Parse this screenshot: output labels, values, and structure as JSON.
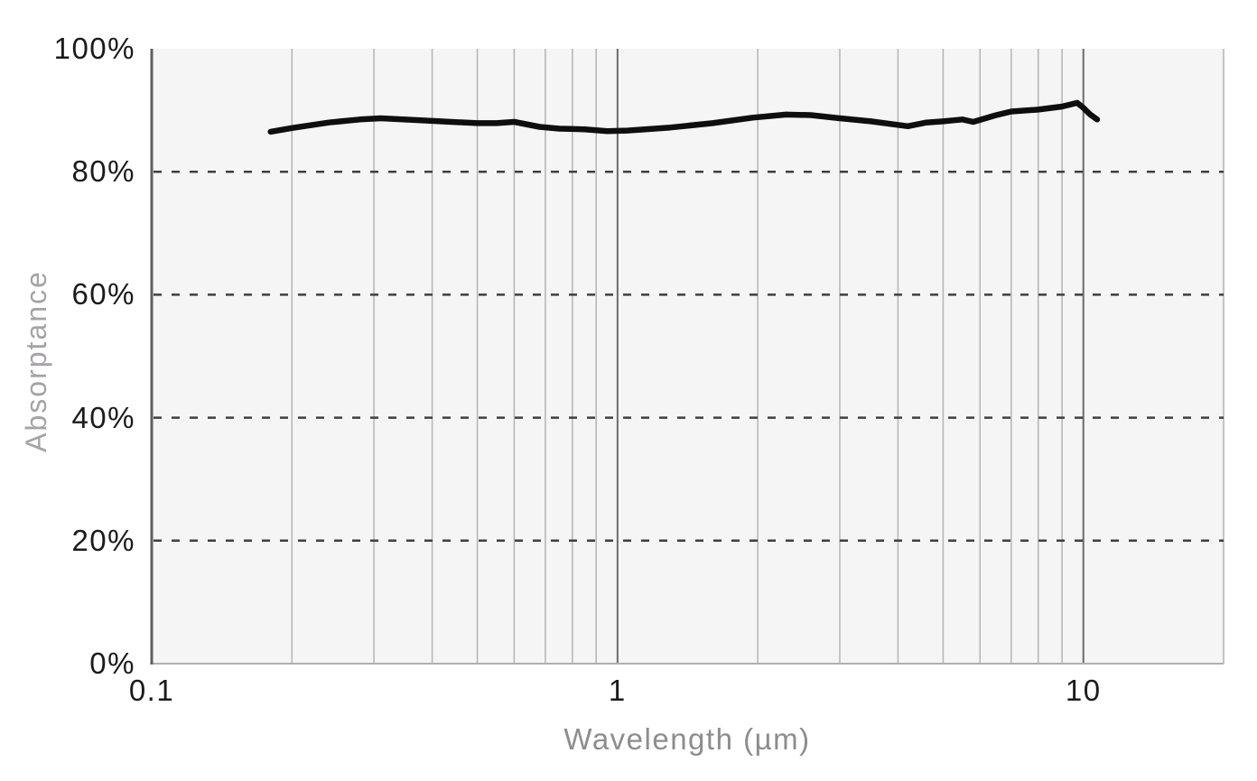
{
  "chart_data": {
    "type": "line",
    "title": "",
    "xlabel": "Wavelength (µm)",
    "ylabel": "Absorptance",
    "x_scale": "log",
    "xlim": [
      0.1,
      20
    ],
    "ylim": [
      0,
      100
    ],
    "grid": true,
    "legend": "none",
    "x_ticks": [
      {
        "value": 0.1,
        "label": "0.1"
      },
      {
        "value": 1,
        "label": "1"
      },
      {
        "value": 10,
        "label": "10"
      }
    ],
    "y_ticks": [
      {
        "value": 100,
        "label": "100%"
      },
      {
        "value": 80,
        "label": "80%"
      },
      {
        "value": 60,
        "label": "60%"
      },
      {
        "value": 40,
        "label": "40%"
      },
      {
        "value": 20,
        "label": "20%"
      },
      {
        "value": 0,
        "label": "0%"
      }
    ],
    "x_minor_gridlines": [
      0.2,
      0.3,
      0.4,
      0.5,
      0.6,
      0.7,
      0.8,
      0.9,
      2,
      3,
      4,
      5,
      6,
      7,
      8,
      9,
      20
    ],
    "x_major_gridlines": [
      1,
      10
    ],
    "y_dashed_gridlines": [
      20,
      40,
      60,
      80
    ],
    "series": [
      {
        "name": "Absorptance",
        "points": [
          [
            0.18,
            86.5
          ],
          [
            0.2,
            87.1
          ],
          [
            0.24,
            88.0
          ],
          [
            0.28,
            88.5
          ],
          [
            0.31,
            88.7
          ],
          [
            0.37,
            88.4
          ],
          [
            0.44,
            88.1
          ],
          [
            0.5,
            87.9
          ],
          [
            0.55,
            87.9
          ],
          [
            0.6,
            88.1
          ],
          [
            0.68,
            87.3
          ],
          [
            0.75,
            87.0
          ],
          [
            0.85,
            86.9
          ],
          [
            0.95,
            86.6
          ],
          [
            1.05,
            86.7
          ],
          [
            1.3,
            87.2
          ],
          [
            1.6,
            87.9
          ],
          [
            1.95,
            88.8
          ],
          [
            2.3,
            89.3
          ],
          [
            2.6,
            89.2
          ],
          [
            3.0,
            88.7
          ],
          [
            3.5,
            88.2
          ],
          [
            4.2,
            87.4
          ],
          [
            4.6,
            88.0
          ],
          [
            5.0,
            88.2
          ],
          [
            5.5,
            88.5
          ],
          [
            5.8,
            88.1
          ],
          [
            6.5,
            89.2
          ],
          [
            7.0,
            89.8
          ],
          [
            8.0,
            90.1
          ],
          [
            9.0,
            90.6
          ],
          [
            9.7,
            91.2
          ],
          [
            10.0,
            90.4
          ],
          [
            10.35,
            89.3
          ],
          [
            10.7,
            88.5
          ]
        ]
      }
    ]
  },
  "colors": {
    "line": "#0e0e0e",
    "plot_bg": "#f5f5f5",
    "minor_grid": "#b4b4b4",
    "major_grid": "#6b6b6b",
    "spine": "#5f5f5f",
    "baseline": "#b0b0b0",
    "dashed_grid": "#3f3f3f",
    "tick_text": "#1b1b1b",
    "x_title": "#8e8c8e",
    "y_title": "#a5a3a5"
  }
}
